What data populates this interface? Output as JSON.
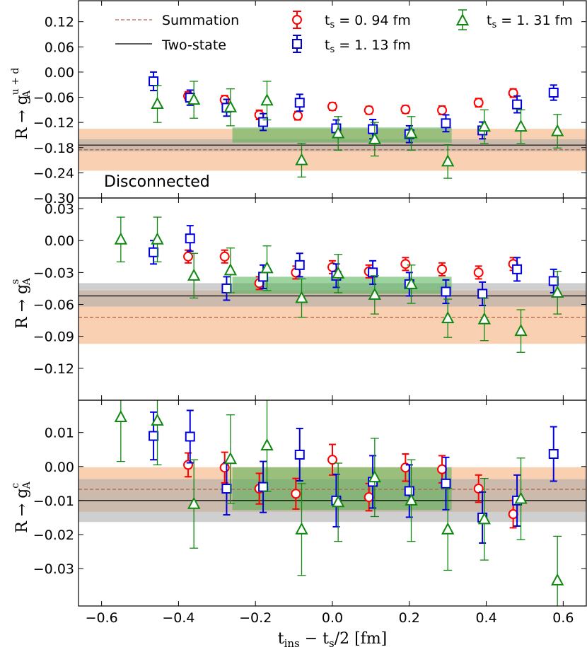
{
  "chart_data": {
    "type": "scatter",
    "shared_x": {
      "label_main": "t",
      "label_sub1": "ins",
      "label_mid": " − t",
      "label_sub2": "s",
      "label_tail": "/2 [fm]",
      "xlim": [
        -0.66,
        0.66
      ],
      "ticks": [
        -0.6,
        -0.4,
        -0.2,
        0.0,
        0.2,
        0.4,
        0.6
      ],
      "tick_labels": [
        "−0.6",
        "−0.4",
        "−0.2",
        "0.0",
        "0.2",
        "0.4",
        "0.6"
      ]
    },
    "legend": {
      "summation": "Summation",
      "two_state": "Two-state",
      "s1_main": "t",
      "s1_sub": "s",
      "s1_val": " = 0. 94 fm",
      "s2_main": "t",
      "s2_sub": "s",
      "s2_val": " = 1. 13 fm",
      "s3_main": "t",
      "s3_sub": "s",
      "s3_val": " = 1. 31 fm"
    },
    "colors": {
      "ts094": "#ff0000",
      "ts113": "#0000dd",
      "ts131": "#118811",
      "summation_band": "#f8c9a4",
      "summation_line": "#b06040",
      "two_state_band": "#a8a8a8",
      "plateau_band": "#4caf50"
    },
    "panels": [
      {
        "id": "u+d",
        "ylabel_main": "R → g",
        "ylabel_sub": "A",
        "ylabel_sup": "u + d",
        "annotation": "Disconnected",
        "ylim": [
          -0.3,
          0.17
        ],
        "yticks": [
          -0.3,
          -0.24,
          -0.18,
          -0.12,
          -0.06,
          0.0,
          0.06,
          0.12
        ],
        "ytick_labels": [
          "−0.30",
          "−0.24",
          "−0.18",
          "−0.12",
          "−0.06",
          "0.00",
          "0.06",
          "0.12"
        ],
        "summation": {
          "value": -0.185,
          "err_low": -0.235,
          "err_high": -0.135
        },
        "two_state": {
          "value": -0.174,
          "err_low": -0.189,
          "err_high": -0.16
        },
        "plateau": {
          "x_from": -0.26,
          "x_to": 0.31,
          "low": -0.168,
          "high": -0.132
        },
        "series": [
          {
            "name": "ts094",
            "marker": "circle",
            "points": [
              {
                "x": -0.375,
                "y": -0.057,
                "e": 0.01
              },
              {
                "x": -0.28,
                "y": -0.066,
                "e": 0.01
              },
              {
                "x": -0.19,
                "y": -0.102,
                "e": 0.011
              },
              {
                "x": -0.09,
                "y": -0.104,
                "e": 0.01
              },
              {
                "x": 0.0,
                "y": -0.082,
                "e": 0.009
              },
              {
                "x": 0.095,
                "y": -0.091,
                "e": 0.009
              },
              {
                "x": 0.19,
                "y": -0.089,
                "e": 0.009
              },
              {
                "x": 0.285,
                "y": -0.091,
                "e": 0.01
              },
              {
                "x": 0.38,
                "y": -0.073,
                "e": 0.01
              },
              {
                "x": 0.47,
                "y": -0.05,
                "e": 0.01
              }
            ]
          },
          {
            "name": "ts113",
            "marker": "square",
            "points": [
              {
                "x": -0.465,
                "y": -0.022,
                "e": 0.022
              },
              {
                "x": -0.37,
                "y": -0.061,
                "e": 0.018
              },
              {
                "x": -0.275,
                "y": -0.085,
                "e": 0.02
              },
              {
                "x": -0.18,
                "y": -0.119,
                "e": 0.02
              },
              {
                "x": -0.085,
                "y": -0.073,
                "e": 0.02
              },
              {
                "x": 0.01,
                "y": -0.134,
                "e": 0.02
              },
              {
                "x": 0.105,
                "y": -0.136,
                "e": 0.023
              },
              {
                "x": 0.2,
                "y": -0.148,
                "e": 0.02
              },
              {
                "x": 0.295,
                "y": -0.122,
                "e": 0.02
              },
              {
                "x": 0.39,
                "y": -0.139,
                "e": 0.02
              },
              {
                "x": 0.48,
                "y": -0.077,
                "e": 0.02
              },
              {
                "x": 0.575,
                "y": -0.049,
                "e": 0.018
              }
            ]
          },
          {
            "name": "ts131",
            "marker": "triangle",
            "points": [
              {
                "x": -0.455,
                "y": -0.076,
                "e": 0.044
              },
              {
                "x": -0.36,
                "y": -0.066,
                "e": 0.044
              },
              {
                "x": -0.265,
                "y": -0.084,
                "e": 0.044
              },
              {
                "x": -0.17,
                "y": -0.068,
                "e": 0.046
              },
              {
                "x": -0.08,
                "y": -0.21,
                "e": 0.04
              },
              {
                "x": 0.015,
                "y": -0.146,
                "e": 0.04
              },
              {
                "x": 0.11,
                "y": -0.16,
                "e": 0.04
              },
              {
                "x": 0.205,
                "y": -0.146,
                "e": 0.04
              },
              {
                "x": 0.3,
                "y": -0.213,
                "e": 0.04
              },
              {
                "x": 0.395,
                "y": -0.13,
                "e": 0.04
              },
              {
                "x": 0.49,
                "y": -0.13,
                "e": 0.04
              },
              {
                "x": 0.585,
                "y": -0.141,
                "e": 0.04
              }
            ]
          }
        ]
      },
      {
        "id": "s",
        "ylabel_main": "R → g",
        "ylabel_sub": "A",
        "ylabel_sup": "s",
        "annotation": "",
        "ylim": [
          -0.15,
          0.04
        ],
        "yticks": [
          -0.12,
          -0.09,
          -0.06,
          -0.03,
          0.0,
          0.03
        ],
        "ytick_labels": [
          "−0.12",
          "−0.09",
          "−0.06",
          "−0.03",
          "0.00",
          "0.03"
        ],
        "summation": {
          "value": -0.072,
          "err_low": -0.097,
          "err_high": -0.047
        },
        "two_state": {
          "value": -0.052,
          "err_low": -0.062,
          "err_high": -0.04
        },
        "plateau": {
          "x_from": -0.26,
          "x_to": 0.31,
          "low": -0.05,
          "high": -0.034
        },
        "series": [
          {
            "name": "ts094",
            "marker": "circle",
            "points": [
              {
                "x": -0.375,
                "y": -0.015,
                "e": 0.006
              },
              {
                "x": -0.28,
                "y": -0.015,
                "e": 0.006
              },
              {
                "x": -0.19,
                "y": -0.04,
                "e": 0.006
              },
              {
                "x": -0.095,
                "y": -0.03,
                "e": 0.006
              },
              {
                "x": 0.0,
                "y": -0.025,
                "e": 0.006
              },
              {
                "x": 0.095,
                "y": -0.029,
                "e": 0.006
              },
              {
                "x": 0.19,
                "y": -0.022,
                "e": 0.006
              },
              {
                "x": 0.285,
                "y": -0.027,
                "e": 0.006
              },
              {
                "x": 0.38,
                "y": -0.03,
                "e": 0.006
              },
              {
                "x": 0.47,
                "y": -0.022,
                "e": 0.006
              }
            ]
          },
          {
            "name": "ts113",
            "marker": "square",
            "points": [
              {
                "x": -0.465,
                "y": -0.011,
                "e": 0.011
              },
              {
                "x": -0.37,
                "y": 0.002,
                "e": 0.012
              },
              {
                "x": -0.275,
                "y": -0.045,
                "e": 0.011
              },
              {
                "x": -0.18,
                "y": -0.034,
                "e": 0.011
              },
              {
                "x": -0.085,
                "y": -0.023,
                "e": 0.011
              },
              {
                "x": 0.01,
                "y": -0.033,
                "e": 0.011
              },
              {
                "x": 0.105,
                "y": -0.03,
                "e": 0.011
              },
              {
                "x": 0.2,
                "y": -0.041,
                "e": 0.011
              },
              {
                "x": 0.295,
                "y": -0.048,
                "e": 0.011
              },
              {
                "x": 0.39,
                "y": -0.05,
                "e": 0.011
              },
              {
                "x": 0.48,
                "y": -0.027,
                "e": 0.011
              },
              {
                "x": 0.575,
                "y": -0.038,
                "e": 0.011
              }
            ]
          },
          {
            "name": "ts131",
            "marker": "triangle",
            "points": [
              {
                "x": -0.55,
                "y": 0.001,
                "e": 0.021
              },
              {
                "x": -0.455,
                "y": 0.001,
                "e": 0.021
              },
              {
                "x": -0.36,
                "y": -0.033,
                "e": 0.021
              },
              {
                "x": -0.265,
                "y": -0.028,
                "e": 0.021
              },
              {
                "x": -0.17,
                "y": -0.026,
                "e": 0.021
              },
              {
                "x": -0.08,
                "y": -0.054,
                "e": 0.018
              },
              {
                "x": 0.015,
                "y": -0.031,
                "e": 0.018
              },
              {
                "x": 0.11,
                "y": -0.051,
                "e": 0.018
              },
              {
                "x": 0.205,
                "y": -0.041,
                "e": 0.018
              },
              {
                "x": 0.3,
                "y": -0.073,
                "e": 0.018
              },
              {
                "x": 0.395,
                "y": -0.074,
                "e": 0.02
              },
              {
                "x": 0.49,
                "y": -0.085,
                "e": 0.02
              },
              {
                "x": 0.585,
                "y": -0.049,
                "e": 0.02
              }
            ]
          }
        ]
      },
      {
        "id": "c",
        "ylabel_main": "R → g",
        "ylabel_sub": "A",
        "ylabel_sup": "c",
        "annotation": "",
        "ylim": [
          -0.041,
          0.0195
        ],
        "yticks": [
          -0.03,
          -0.02,
          -0.01,
          0.0,
          0.01
        ],
        "ytick_labels": [
          "−0.03",
          "−0.02",
          "−0.01",
          "0.00",
          "0.01"
        ],
        "summation": {
          "value": -0.0067,
          "err_low": -0.0133,
          "err_high": -0.0002
        },
        "two_state": {
          "value": -0.01,
          "err_low": -0.0163,
          "err_high": -0.0037
        },
        "plateau": {
          "x_from": -0.26,
          "x_to": 0.31,
          "low": -0.0128,
          "high": -0.0002
        },
        "series": [
          {
            "name": "ts094",
            "marker": "circle",
            "points": [
              {
                "x": -0.375,
                "y": 0.0005,
                "e": 0.0035
              },
              {
                "x": -0.28,
                "y": -0.0003,
                "e": 0.0045
              },
              {
                "x": -0.19,
                "y": -0.0065,
                "e": 0.0045
              },
              {
                "x": -0.095,
                "y": -0.008,
                "e": 0.0045
              },
              {
                "x": 0.0,
                "y": 0.002,
                "e": 0.0045
              },
              {
                "x": 0.095,
                "y": -0.009,
                "e": 0.004
              },
              {
                "x": 0.19,
                "y": -0.0003,
                "e": 0.004
              },
              {
                "x": 0.285,
                "y": -0.0008,
                "e": 0.004
              },
              {
                "x": 0.38,
                "y": -0.0065,
                "e": 0.004
              },
              {
                "x": 0.47,
                "y": -0.014,
                "e": 0.004
              }
            ]
          },
          {
            "name": "ts113",
            "marker": "square",
            "points": [
              {
                "x": -0.465,
                "y": 0.009,
                "e": 0.007
              },
              {
                "x": -0.37,
                "y": 0.0088,
                "e": 0.0077
              },
              {
                "x": -0.275,
                "y": -0.0065,
                "e": 0.0077
              },
              {
                "x": -0.18,
                "y": -0.006,
                "e": 0.0075
              },
              {
                "x": -0.085,
                "y": 0.0035,
                "e": 0.0077
              },
              {
                "x": 0.01,
                "y": -0.01,
                "e": 0.0077
              },
              {
                "x": 0.105,
                "y": -0.0045,
                "e": 0.0077
              },
              {
                "x": 0.2,
                "y": -0.0072,
                "e": 0.0077
              },
              {
                "x": 0.295,
                "y": -0.005,
                "e": 0.0077
              },
              {
                "x": 0.39,
                "y": -0.015,
                "e": 0.0075
              },
              {
                "x": 0.48,
                "y": -0.01,
                "e": 0.0075
              },
              {
                "x": 0.575,
                "y": 0.0037,
                "e": 0.008
              }
            ]
          },
          {
            "name": "ts131",
            "marker": "triangle",
            "points": [
              {
                "x": -0.55,
                "y": 0.0145,
                "e": 0.013
              },
              {
                "x": -0.455,
                "y": 0.0135,
                "e": 0.013
              },
              {
                "x": -0.36,
                "y": -0.011,
                "e": 0.013
              },
              {
                "x": -0.265,
                "y": 0.0022,
                "e": 0.013
              },
              {
                "x": -0.17,
                "y": 0.0062,
                "e": 0.0135
              },
              {
                "x": -0.08,
                "y": -0.0185,
                "e": 0.0135
              },
              {
                "x": 0.015,
                "y": -0.0105,
                "e": 0.0115
              },
              {
                "x": 0.11,
                "y": -0.0032,
                "e": 0.0115
              },
              {
                "x": 0.205,
                "y": -0.01,
                "e": 0.012
              },
              {
                "x": 0.3,
                "y": -0.0185,
                "e": 0.012
              },
              {
                "x": 0.395,
                "y": -0.0155,
                "e": 0.012
              },
              {
                "x": 0.49,
                "y": -0.0095,
                "e": 0.012
              },
              {
                "x": 0.585,
                "y": -0.0335,
                "e": 0.013
              }
            ]
          }
        ]
      }
    ]
  }
}
